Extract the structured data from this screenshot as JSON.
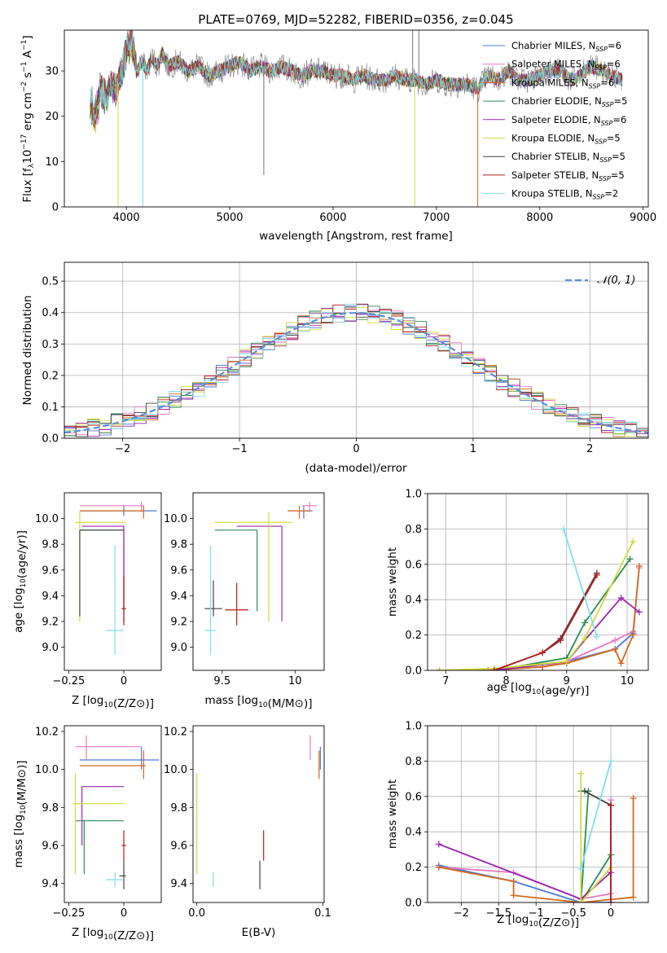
{
  "figure": {
    "title": "PLATE=0769, MJD=52282, FIBERID=0356, z=0.045",
    "colors": {
      "Chabrier MILES": "#4e79d8",
      "Salpeter MILES": "#e377c2",
      "Kroupa MILES": "#d2691e",
      "Chabrier ELODIE": "#2e8b57",
      "Salpeter ELODIE": "#9c27b0",
      "Kroupa ELODIE": "#cddc39",
      "Chabrier STELIB": "#444444",
      "Salpeter STELIB": "#b71c1c",
      "Kroupa STELIB": "#80deea"
    }
  },
  "chart_data": [
    {
      "id": "spectrum",
      "type": "line",
      "xlabel": "wavelength [Angstrom, rest frame]",
      "xlim": [
        3400,
        9050
      ],
      "ylim": [
        0,
        39
      ],
      "xticks": [
        4000,
        5000,
        6000,
        7000,
        8000,
        9000
      ],
      "yticks": [
        0,
        10,
        20,
        30
      ],
      "legend_loc": "upper-right",
      "legend": [
        {
          "label": "Chabrier MILES, N",
          "sub": "SSP",
          "tail": "=6",
          "color": "#4e79d8"
        },
        {
          "label": "Salpeter MILES, N",
          "sub": "SSP",
          "tail": "=6",
          "color": "#e377c2"
        },
        {
          "label": "Kroupa MILES, N",
          "sub": "SSP",
          "tail": "=6",
          "color": "#d2691e"
        },
        {
          "label": "Chabrier ELODIE, N",
          "sub": "SSP",
          "tail": "=5",
          "color": "#2e8b57"
        },
        {
          "label": "Salpeter ELODIE, N",
          "sub": "SSP",
          "tail": "=6",
          "color": "#9c27b0"
        },
        {
          "label": "Kroupa ELODIE, N",
          "sub": "SSP",
          "tail": "=5",
          "color": "#cddc39"
        },
        {
          "label": "Chabrier STELIB, N",
          "sub": "SSP",
          "tail": "=5",
          "color": "#444444"
        },
        {
          "label": "Salpeter STELIB, N",
          "sub": "SSP",
          "tail": "=5",
          "color": "#b71c1c"
        },
        {
          "label": "Kroupa STELIB, N",
          "sub": "SSP",
          "tail": "=2",
          "color": "#80deea"
        }
      ],
      "observed": {
        "color": "#777777",
        "x": [
          3650,
          3700,
          3750,
          3800,
          3850,
          3900,
          3950,
          4000,
          4050,
          4100,
          4150,
          4200,
          4250,
          4300,
          4350,
          4400,
          4500,
          4600,
          4700,
          4800,
          4900,
          5000,
          5100,
          5200,
          5300,
          5400,
          5500,
          5600,
          5700,
          5800,
          5900,
          6000,
          6100,
          6200,
          6300,
          6400,
          6500,
          6600,
          6700,
          6800,
          6900,
          7000,
          7100,
          7200,
          7300,
          7400,
          7500,
          7600,
          7700,
          7800,
          7900,
          8000,
          8100,
          8200,
          8300,
          8400,
          8500,
          8600,
          8700,
          8800
        ],
        "y": [
          23,
          20,
          26,
          24,
          28,
          26,
          29,
          34,
          37,
          30,
          32,
          30,
          33,
          31,
          34,
          31,
          32,
          30,
          31,
          29,
          30,
          31,
          32,
          30,
          31,
          30,
          31,
          30,
          29,
          30,
          30,
          29,
          29,
          28,
          29,
          28,
          28,
          29,
          28,
          28,
          27,
          28,
          27,
          27,
          27,
          26,
          29,
          28,
          30,
          28,
          28,
          29,
          30,
          30,
          28,
          29,
          31,
          30,
          29,
          28
        ]
      },
      "models_visible_range": {
        "Kroupa MILES": [
          3650,
          7400
        ]
      },
      "spikes": [
        {
          "x": 3920,
          "to": 0,
          "color": "#cddc39"
        },
        {
          "x": 4160,
          "to": 0,
          "color": "#80deea"
        },
        {
          "x": 5330,
          "to": 7,
          "color": "#777777"
        },
        {
          "x": 6770,
          "to": 39,
          "color": "#777777"
        },
        {
          "x": 6790,
          "to": 0,
          "color": "#cddc39"
        },
        {
          "x": 6830,
          "to": 39,
          "color": "#777777"
        },
        {
          "x": 7400,
          "to": 0,
          "color": "#d2691e"
        }
      ]
    },
    {
      "id": "residuals",
      "type": "line",
      "xlabel": "(data-model)/error",
      "ylabel": "Normed distribution",
      "xlim": [
        -2.5,
        2.5
      ],
      "ylim": [
        0,
        0.56
      ],
      "xticks": [
        -2,
        -1,
        0,
        1,
        2
      ],
      "yticks": [
        0.0,
        0.1,
        0.2,
        0.3,
        0.4,
        0.5
      ],
      "grid": true,
      "legend_loc": "upper-right",
      "gaussian_label": "𝒩(0, 1)",
      "gaussian_color": "#5b8fd9",
      "bin_width": 0.1
    },
    {
      "id": "z-age",
      "type": "scatter",
      "xlabel": "Z [log10(Z/Z⊙)]",
      "ylabel": "age  [log10(age/yr)]",
      "xlim": [
        -0.27,
        0.17
      ],
      "ylim": [
        8.82,
        10.2
      ],
      "xticks": [
        -0.25,
        0.0
      ],
      "yticks": [
        9.0,
        9.2,
        9.4,
        9.6,
        9.8,
        10.0
      ],
      "points": [
        {
          "m": "Chabrier MILES",
          "x": 0.0,
          "y": 10.06,
          "xlo": -0.2,
          "xhi": 0.15,
          "ylo": 10.02,
          "yhi": 10.1
        },
        {
          "m": "Salpeter MILES",
          "x": 0.08,
          "y": 10.1,
          "xlo": -0.2,
          "xhi": 0.09,
          "ylo": 10.05,
          "yhi": 10.13
        },
        {
          "m": "Kroupa MILES",
          "x": 0.09,
          "y": 10.06,
          "xlo": -0.2,
          "xhi": 0.09,
          "ylo": 10.0,
          "yhi": 10.1
        },
        {
          "m": "Chabrier ELODIE",
          "x": 0.0,
          "y": 9.91,
          "xlo": -0.2,
          "xhi": 0.0,
          "ylo": 9.28,
          "yhi": 9.91
        },
        {
          "m": "Salpeter ELODIE",
          "x": 0.0,
          "y": 9.94,
          "xlo": -0.19,
          "xhi": 0.0,
          "ylo": 9.2,
          "yhi": 9.94
        },
        {
          "m": "Kroupa ELODIE",
          "x": -0.2,
          "y": 9.97,
          "xlo": -0.22,
          "xhi": 0.01,
          "ylo": 9.2,
          "yhi": 10.05
        },
        {
          "m": "Chabrier STELIB",
          "x": -0.2,
          "y": 9.91,
          "xlo": -0.2,
          "xhi": 0.0,
          "ylo": 9.24,
          "yhi": 9.91
        },
        {
          "m": "Salpeter STELIB",
          "x": 0.0,
          "y": 9.3,
          "xlo": -0.01,
          "xhi": 0.01,
          "ylo": 9.17,
          "yhi": 9.55
        },
        {
          "m": "Kroupa STELIB",
          "x": -0.04,
          "y": 9.13,
          "xlo": -0.08,
          "xhi": 0.0,
          "ylo": 8.94,
          "yhi": 9.79
        }
      ]
    },
    {
      "id": "mass-age",
      "type": "scatter",
      "xlabel": "mass [log10(M/M⊙)]",
      "ylabel": "",
      "xlim": [
        9.3,
        10.2
      ],
      "ylim": [
        8.82,
        10.2
      ],
      "xticks": [
        9.5,
        10.0
      ],
      "yticks": [
        9.0,
        9.2,
        9.4,
        9.6,
        9.8,
        10.0
      ],
      "points": [
        {
          "m": "Chabrier MILES",
          "x": 10.06,
          "y": 10.06,
          "xlo": 9.95,
          "xhi": 10.12,
          "ylo": 10.0,
          "yhi": 10.1
        },
        {
          "m": "Salpeter MILES",
          "x": 10.1,
          "y": 10.1,
          "xlo": 10.05,
          "xhi": 10.15,
          "ylo": 10.05,
          "yhi": 10.13
        },
        {
          "m": "Kroupa MILES",
          "x": 10.03,
          "y": 10.06,
          "xlo": 9.95,
          "xhi": 10.1,
          "ylo": 10.0,
          "yhi": 10.1
        },
        {
          "m": "Chabrier ELODIE",
          "x": 9.74,
          "y": 9.91,
          "xlo": 9.45,
          "xhi": 9.74,
          "ylo": 9.28,
          "yhi": 9.91
        },
        {
          "m": "Salpeter ELODIE",
          "x": 9.91,
          "y": 9.94,
          "xlo": 9.6,
          "xhi": 9.91,
          "ylo": 9.2,
          "yhi": 9.94
        },
        {
          "m": "Kroupa ELODIE",
          "x": 9.82,
          "y": 9.97,
          "xlo": 9.45,
          "xhi": 9.98,
          "ylo": 9.2,
          "yhi": 10.05
        },
        {
          "m": "Chabrier STELIB",
          "x": 9.44,
          "y": 9.3,
          "xlo": 9.38,
          "xhi": 9.5,
          "ylo": 9.24,
          "yhi": 9.52
        },
        {
          "m": "Salpeter STELIB",
          "x": 9.6,
          "y": 9.29,
          "xlo": 9.52,
          "xhi": 9.68,
          "ylo": 9.17,
          "yhi": 9.5
        },
        {
          "m": "Kroupa STELIB",
          "x": 9.42,
          "y": 9.13,
          "xlo": 9.38,
          "xhi": 9.46,
          "ylo": 8.94,
          "yhi": 9.79
        }
      ]
    },
    {
      "id": "age-weight",
      "type": "line",
      "xlabel": "age  [log10(age/yr)]",
      "ylabel": "mass weight",
      "xlim": [
        6.7,
        10.35
      ],
      "ylim": [
        0,
        1.0
      ],
      "xticks": [
        7,
        8,
        9,
        10
      ],
      "yticks": [
        0.0,
        0.2,
        0.4,
        0.6,
        0.8,
        1.0
      ],
      "grid": true,
      "series": [
        {
          "m": "Chabrier MILES",
          "x": [
            6.9,
            7.7,
            8.6,
            9.0,
            9.8,
            10.1
          ],
          "y": [
            0.0,
            0.0,
            0.02,
            0.05,
            0.12,
            0.21
          ]
        },
        {
          "m": "Salpeter MILES",
          "x": [
            6.9,
            7.7,
            8.6,
            9.0,
            9.8,
            10.1,
            10.2
          ],
          "y": [
            0.0,
            0.0,
            0.02,
            0.05,
            0.17,
            0.22,
            0.58
          ]
        },
        {
          "m": "Kroupa MILES",
          "x": [
            6.9,
            7.7,
            8.6,
            9.0,
            9.8,
            9.9,
            10.1,
            10.2
          ],
          "y": [
            0.0,
            0.0,
            0.02,
            0.04,
            0.12,
            0.04,
            0.2,
            0.59
          ]
        },
        {
          "m": "Chabrier ELODIE",
          "x": [
            7.8,
            9.0,
            9.3,
            10.05
          ],
          "y": [
            0.0,
            0.07,
            0.27,
            0.63
          ]
        },
        {
          "m": "Salpeter ELODIE",
          "x": [
            7.8,
            9.0,
            9.9,
            10.2
          ],
          "y": [
            0.0,
            0.05,
            0.41,
            0.33
          ]
        },
        {
          "m": "Kroupa ELODIE",
          "x": [
            6.9,
            7.8,
            9.0,
            9.3,
            10.1
          ],
          "y": [
            0.0,
            0.01,
            0.05,
            0.18,
            0.73
          ]
        },
        {
          "m": "Chabrier STELIB",
          "x": [
            7.8,
            8.6,
            8.9,
            9.5
          ],
          "y": [
            0.0,
            0.1,
            0.18,
            0.55
          ]
        },
        {
          "m": "Salpeter STELIB",
          "x": [
            7.8,
            8.6,
            8.9,
            9.5
          ],
          "y": [
            0.0,
            0.1,
            0.17,
            0.54
          ]
        },
        {
          "m": "Kroupa STELIB",
          "x": [
            8.95,
            9.5
          ],
          "y": [
            0.8,
            0.19
          ]
        }
      ]
    },
    {
      "id": "z-mass",
      "type": "scatter",
      "xlabel": "Z [log10(Z/Z⊙)]",
      "ylabel": "mass [log10(M/M⊙)]",
      "xlim": [
        -0.27,
        0.17
      ],
      "ylim": [
        9.3,
        10.23
      ],
      "xticks": [
        -0.25,
        0.0
      ],
      "yticks": [
        9.4,
        9.6,
        9.8,
        10.0,
        10.2
      ],
      "points": [
        {
          "m": "Chabrier MILES",
          "x": 0.08,
          "y": 10.05,
          "xlo": -0.2,
          "xhi": 0.16,
          "ylo": 10.0,
          "yhi": 10.12
        },
        {
          "m": "Salpeter MILES",
          "x": -0.17,
          "y": 10.12,
          "xlo": -0.22,
          "xhi": 0.08,
          "ylo": 10.05,
          "yhi": 10.18
        },
        {
          "m": "Kroupa MILES",
          "x": 0.09,
          "y": 10.02,
          "xlo": -0.2,
          "xhi": 0.1,
          "ylo": 9.95,
          "yhi": 10.1
        },
        {
          "m": "Chabrier ELODIE",
          "x": -0.18,
          "y": 9.73,
          "xlo": -0.22,
          "xhi": 0.0,
          "ylo": 9.45,
          "yhi": 9.73
        },
        {
          "m": "Salpeter ELODIE",
          "x": -0.19,
          "y": 9.91,
          "xlo": -0.19,
          "xhi": 0.0,
          "ylo": 9.6,
          "yhi": 9.91
        },
        {
          "m": "Kroupa ELODIE",
          "x": -0.22,
          "y": 9.82,
          "xlo": -0.23,
          "xhi": 0.0,
          "ylo": 9.45,
          "yhi": 9.98
        },
        {
          "m": "Chabrier STELIB",
          "x": 0.0,
          "y": 9.44,
          "xlo": -0.02,
          "xhi": 0.01,
          "ylo": 9.37,
          "yhi": 9.52
        },
        {
          "m": "Salpeter STELIB",
          "x": 0.0,
          "y": 9.6,
          "xlo": -0.01,
          "xhi": 0.01,
          "ylo": 9.52,
          "yhi": 9.68
        },
        {
          "m": "Kroupa STELIB",
          "x": -0.04,
          "y": 9.42,
          "xlo": -0.08,
          "xhi": 0.0,
          "ylo": 9.38,
          "yhi": 9.46
        }
      ]
    },
    {
      "id": "ebv-mass",
      "type": "scatter",
      "xlabel": "E(B-V)",
      "ylabel": "",
      "xlim": [
        -0.003,
        0.101
      ],
      "ylim": [
        9.3,
        10.23
      ],
      "xticks": [
        0.0,
        0.1
      ],
      "xticklabels": [
        "0.0",
        "0.1"
      ],
      "yticks": [
        9.4,
        9.6,
        9.8,
        10.0,
        10.2
      ],
      "points": [
        {
          "m": "Salpeter MILES",
          "x": 0.09,
          "y": 10.12,
          "xlo": 0.09,
          "xhi": 0.09,
          "ylo": 10.05,
          "yhi": 10.18
        },
        {
          "m": "Chabrier MILES",
          "x": 0.098,
          "y": 10.05,
          "xlo": 0.098,
          "xhi": 0.098,
          "ylo": 10.0,
          "yhi": 10.12
        },
        {
          "m": "Kroupa MILES",
          "x": 0.097,
          "y": 10.02,
          "xlo": 0.097,
          "xhi": 0.097,
          "ylo": 9.95,
          "yhi": 10.1
        },
        {
          "m": "Kroupa ELODIE",
          "x": 0.0,
          "y": 9.82,
          "xlo": 0.0,
          "xhi": 0.0,
          "ylo": 9.45,
          "yhi": 9.98
        },
        {
          "m": "Salpeter STELIB",
          "x": 0.053,
          "y": 9.6,
          "xlo": 0.053,
          "xhi": 0.053,
          "ylo": 9.52,
          "yhi": 9.68
        },
        {
          "m": "Chabrier STELIB",
          "x": 0.05,
          "y": 9.44,
          "xlo": 0.05,
          "xhi": 0.05,
          "ylo": 9.37,
          "yhi": 9.52
        },
        {
          "m": "Kroupa STELIB",
          "x": 0.013,
          "y": 9.42,
          "xlo": 0.013,
          "xhi": 0.013,
          "ylo": 9.38,
          "yhi": 9.46
        }
      ]
    },
    {
      "id": "z-weight",
      "type": "line",
      "xlabel": "Z [log10(Z/Z⊙)]",
      "ylabel": "mass weight",
      "xlim": [
        -2.45,
        0.5
      ],
      "ylim": [
        0,
        1.0
      ],
      "xticks": [
        -2.0,
        -1.5,
        -1.0,
        -0.5,
        0.0
      ],
      "yticks": [
        0.0,
        0.2,
        0.4,
        0.6,
        0.8,
        1.0
      ],
      "grid": true,
      "series": [
        {
          "m": "Chabrier MILES",
          "x": [
            -2.3,
            -1.3,
            -0.4,
            0.0
          ],
          "y": [
            0.21,
            0.12,
            0.0,
            0.0
          ]
        },
        {
          "m": "Salpeter MILES",
          "x": [
            -2.3,
            -1.3,
            -0.4,
            0.0,
            0.0
          ],
          "y": [
            0.2,
            0.17,
            0.02,
            0.05,
            0.58
          ]
        },
        {
          "m": "Kroupa MILES",
          "x": [
            -2.3,
            -1.3,
            -1.3,
            -0.4,
            0.3,
            0.3
          ],
          "y": [
            0.2,
            0.12,
            0.04,
            0.0,
            0.03,
            0.59
          ]
        },
        {
          "m": "Chabrier ELODIE",
          "x": [
            -0.4,
            -0.3,
            -0.4,
            0.0
          ],
          "y": [
            0.63,
            0.63,
            0.0,
            0.27
          ]
        },
        {
          "m": "Salpeter ELODIE",
          "x": [
            -2.3,
            -0.4,
            0.0
          ],
          "y": [
            0.33,
            0.02,
            0.17
          ]
        },
        {
          "m": "Kroupa ELODIE",
          "x": [
            -0.4,
            -0.4,
            0.0
          ],
          "y": [
            0.73,
            0.0,
            0.2
          ]
        },
        {
          "m": "Chabrier STELIB",
          "x": [
            -0.35,
            0.0,
            0.0
          ],
          "y": [
            0.63,
            0.55,
            0.0
          ]
        },
        {
          "m": "Salpeter STELIB",
          "x": [
            0.0,
            0.0
          ],
          "y": [
            0.55,
            0.0
          ]
        },
        {
          "m": "Kroupa STELIB",
          "x": [
            -0.4,
            0.0
          ],
          "y": [
            0.19,
            0.8
          ]
        }
      ]
    }
  ]
}
